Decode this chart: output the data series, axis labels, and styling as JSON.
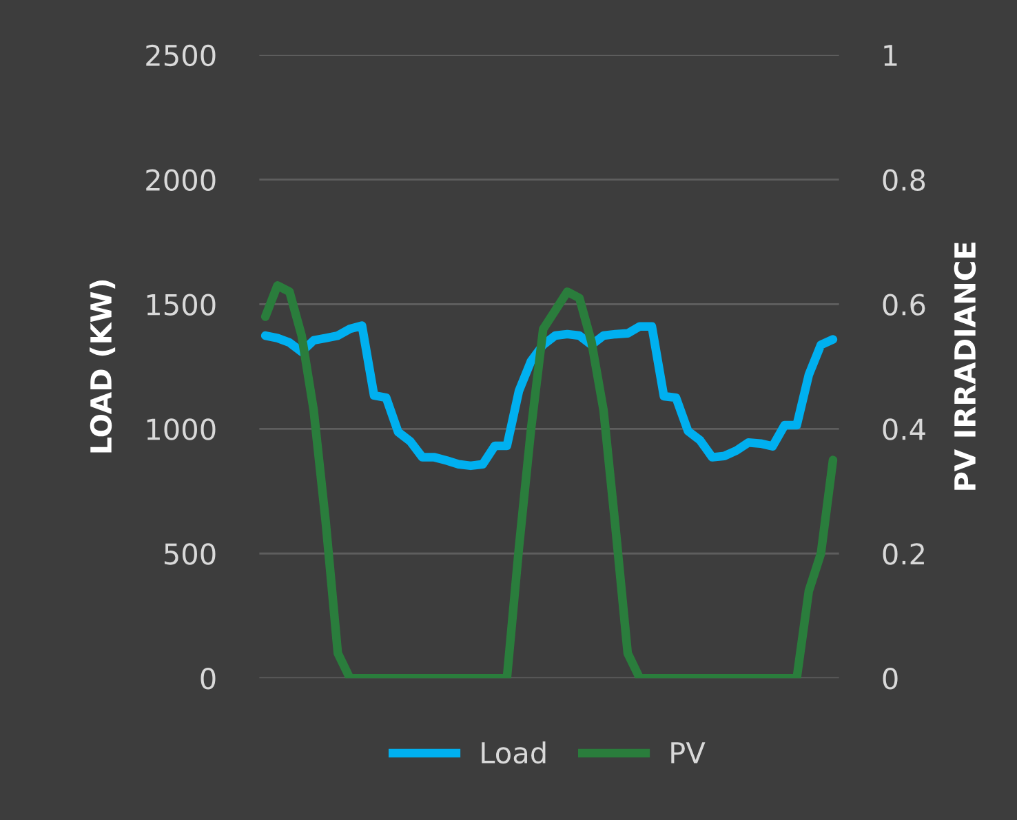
{
  "chart_data": {
    "type": "line",
    "categories": [
      null,
      null,
      null,
      null,
      null,
      null,
      null,
      null,
      null,
      null,
      null,
      null,
      null,
      null,
      null,
      null,
      null,
      null,
      null,
      null,
      null,
      null,
      null,
      null,
      null,
      null,
      null,
      null,
      null,
      null,
      null,
      null,
      null,
      null,
      null,
      null,
      null,
      null,
      null,
      null,
      null,
      null,
      null,
      null,
      null,
      null,
      null,
      null
    ],
    "ylabel": "LOAD (KW)",
    "y2label": "PV IRRADIANCE",
    "ylim": [
      0,
      2500
    ],
    "yticks": [
      0,
      500,
      1000,
      1500,
      2000,
      2500
    ],
    "y2lim": [
      0,
      1
    ],
    "y2ticks": [
      0,
      0.2,
      0.4,
      0.6,
      0.8,
      1
    ],
    "grid": "y",
    "legend": "bottom",
    "marker": "none",
    "line_style": "solid",
    "series": [
      {
        "name": "Load",
        "color": "#00b0f0",
        "values": [
          1374,
          1364,
          1346,
          1309,
          1355,
          1364,
          1374,
          1401,
          1414,
          1134,
          1125,
          987,
          950,
          886,
          886,
          873,
          858,
          852,
          858,
          932,
          932,
          1153,
          1272,
          1337,
          1374,
          1380,
          1374,
          1337,
          1374,
          1380,
          1383,
          1411,
          1411,
          1131,
          1125,
          991,
          954,
          886,
          891,
          913,
          945,
          941,
          930,
          1015,
          1015,
          1217,
          1337,
          1359
        ]
      },
      {
        "name": "PV",
        "color": "#2a7d3c",
        "axis": "y2",
        "values": [
          0.58,
          0.63,
          0.62,
          0.55,
          0.43,
          0.25,
          0.04,
          0,
          0,
          0,
          0,
          0,
          0,
          0,
          0,
          0,
          0,
          0,
          0,
          0,
          0,
          0.21,
          0.4,
          0.56,
          0.59,
          0.62,
          0.61,
          0.54,
          0.43,
          0.24,
          0.04,
          0,
          0,
          0,
          0,
          0,
          0,
          0,
          0,
          0,
          0,
          0,
          0,
          0,
          0,
          0.14,
          0.2,
          0.35
        ]
      }
    ]
  }
}
